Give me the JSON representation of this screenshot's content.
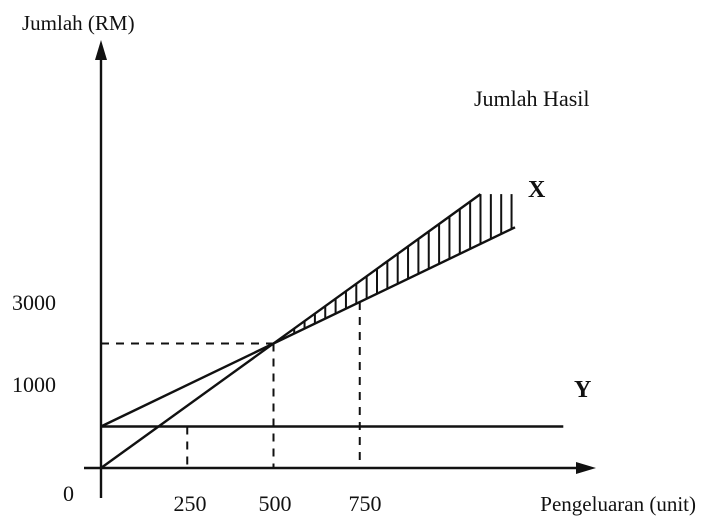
{
  "chart_data": {
    "type": "line",
    "xlabel": "Pengeluaran (unit)",
    "ylabel": "Jumlah (RM)",
    "x_origin_label": "0",
    "x_ticks": [
      250,
      500,
      750
    ],
    "x_tick_labels": [
      "250",
      "500",
      "750"
    ],
    "y_ticks": [
      1000,
      3000
    ],
    "y_tick_labels": [
      "1000",
      "3000"
    ],
    "xlim": [
      0,
      1400
    ],
    "ylim": [
      0,
      6000
    ],
    "series": [
      {
        "name": "Jumlah Hasil",
        "x": [
          0,
          1100
        ],
        "y": [
          0,
          6600
        ]
      },
      {
        "name": "X",
        "x": [
          0,
          1200
        ],
        "y": [
          1000,
          5800
        ]
      },
      {
        "name": "Y",
        "x": [
          0,
          1340
        ],
        "y": [
          1000,
          1000
        ]
      }
    ],
    "reference_points": [
      {
        "x": 250,
        "y": 1000
      },
      {
        "x": 500,
        "y": 3000
      },
      {
        "x": 750
      }
    ],
    "shaded_region": {
      "between": [
        "Jumlah Hasil",
        "X"
      ],
      "x_from": 500,
      "x_to": 1200,
      "pattern": "vertical-hatch"
    },
    "grid": false,
    "legend": "none",
    "colors": {
      "ink": "#111111",
      "background": "#ffffff"
    }
  }
}
